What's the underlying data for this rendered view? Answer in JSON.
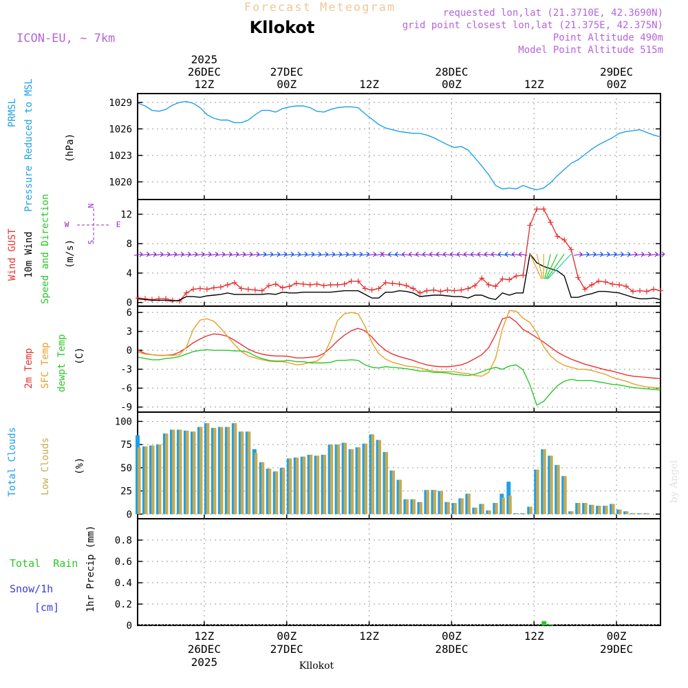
{
  "header": {
    "forecast_title": "Forecast Meteogram",
    "location": "Kllokot",
    "model": "ICON-EU, ~ 7km",
    "requested": "requested lon,lat (21.3710E, 42.3690N)",
    "grid_point": "grid point closest lon,lat (21.375E, 42.375N)",
    "point_alt": "Point Altitude 490m",
    "model_alt": "Model Point Altitude 515m",
    "footer_location": "Kllokot",
    "watermark": "by Angel"
  },
  "time_axis": {
    "top_labels": [
      {
        "hour": 12,
        "lines": [
          "2025",
          "26DEC",
          "12Z"
        ]
      },
      {
        "hour": 24,
        "lines": [
          "27DEC",
          "00Z"
        ]
      },
      {
        "hour": 36,
        "lines": [
          "12Z"
        ]
      },
      {
        "hour": 48,
        "lines": [
          "28DEC",
          "00Z"
        ]
      },
      {
        "hour": 60,
        "lines": [
          "12Z"
        ]
      },
      {
        "hour": 72,
        "lines": [
          "29DEC",
          "00Z"
        ]
      }
    ],
    "bottom_labels": [
      {
        "hour": 12,
        "lines": [
          "12Z",
          "26DEC",
          "2025"
        ]
      },
      {
        "hour": 24,
        "lines": [
          "00Z",
          "27DEC"
        ]
      },
      {
        "hour": 36,
        "lines": [
          "12Z"
        ]
      },
      {
        "hour": 48,
        "lines": [
          "00Z",
          "28DEC"
        ]
      },
      {
        "hour": 60,
        "lines": [
          "12Z"
        ]
      },
      {
        "hour": 72,
        "lines": [
          "00Z",
          "29DEC"
        ]
      }
    ]
  },
  "panel_labels": {
    "pressure": {
      "name": "PRMSL",
      "desc": "Pressure Reduced to MSL",
      "unit": "(hPa)"
    },
    "wind": {
      "gust": "Wind GUST",
      "wind10": "10m Wind",
      "dir": "Speed and Direction",
      "unit": "(m/s)",
      "compass_n": "N",
      "compass_s": "S",
      "compass_w": "W",
      "compass_e": "E"
    },
    "temp": {
      "t2m": "2m Temp",
      "sfc": "SFC Temp",
      "dewpt": "dewpt Temp",
      "unit": "(C)"
    },
    "clouds": {
      "total": "Total Clouds",
      "low": "Low Clouds",
      "unit": "(%)"
    },
    "precip": {
      "rain": "Total  Rain",
      "snow": "Snow/1h",
      "snow_unit": "[cm]",
      "unit": "1hr Precip (mm)"
    }
  },
  "colors": {
    "pressure": "#1ea0e6",
    "gust": "#e63232",
    "wind": "#000000",
    "wind_arrow": "#8c28c8",
    "wind_arrow_alt": "#1e50e6",
    "t2m": "#e63232",
    "sfc": "#e6a028",
    "dewpt": "#28c828",
    "total_cloud": "#1ea0e6",
    "low_cloud": "#c8aa50",
    "rain": "#28c828",
    "snow": "#3c3cdc",
    "label_model": "#b464dc",
    "label_forecast": "#f0c896"
  },
  "chart_data": [
    {
      "type": "line",
      "name": "pressure",
      "ylabel": "(hPa)",
      "ylim": [
        1018,
        1030
      ],
      "yticks": [
        1020,
        1023,
        1026,
        1029
      ],
      "x_start_hour": 0,
      "x_end_hour": 76,
      "series": [
        {
          "name": "PRMSL",
          "values": [
            1028.9,
            1028.6,
            1028.1,
            1028.0,
            1028.2,
            1028.7,
            1029.0,
            1029.1,
            1028.9,
            1028.4,
            1027.6,
            1027.2,
            1027.0,
            1027.0,
            1026.7,
            1026.7,
            1027.0,
            1027.6,
            1028.1,
            1028.1,
            1027.9,
            1028.3,
            1028.5,
            1028.6,
            1028.6,
            1028.4,
            1028.0,
            1027.9,
            1028.2,
            1028.4,
            1028.5,
            1028.5,
            1028.4,
            1027.7,
            1027.1,
            1026.5,
            1026.1,
            1025.9,
            1025.7,
            1025.6,
            1025.5,
            1025.5,
            1025.3,
            1025.0,
            1024.6,
            1024.2,
            1023.9,
            1024.0,
            1023.6,
            1022.7,
            1021.8,
            1020.8,
            1019.6,
            1019.2,
            1019.3,
            1019.2,
            1019.6,
            1019.3,
            1019.1,
            1019.3,
            1019.9,
            1020.7,
            1021.4,
            1022.1,
            1022.5,
            1023.1,
            1023.7,
            1024.2,
            1024.6,
            1025.0,
            1025.5,
            1025.7,
            1025.8,
            1025.9,
            1025.6,
            1025.3,
            1025.1
          ]
        }
      ]
    },
    {
      "type": "line",
      "name": "wind",
      "ylabel": "(m/s)",
      "ylim": [
        -0.5,
        14
      ],
      "yticks": [
        0,
        4,
        8,
        12
      ],
      "x_start_hour": 0,
      "x_end_hour": 76,
      "series": [
        {
          "name": "Wind GUST",
          "values": [
            0.6,
            0.5,
            0.4,
            0.5,
            0.5,
            0.3,
            0.2,
            1.3,
            1.8,
            1.9,
            1.8,
            2.0,
            2.1,
            2.4,
            2.7,
            1.9,
            1.8,
            1.7,
            1.6,
            2.3,
            2.5,
            2.0,
            2.2,
            2.6,
            2.5,
            2.4,
            2.5,
            2.3,
            2.4,
            2.4,
            2.5,
            2.9,
            2.9,
            1.9,
            1.7,
            1.9,
            2.7,
            2.6,
            2.5,
            2.3,
            1.9,
            1.3,
            1.6,
            1.7,
            1.5,
            1.7,
            1.6,
            1.7,
            1.9,
            2.3,
            3.3,
            2.4,
            2.2,
            3.2,
            3.1,
            3.6,
            3.7,
            10.5,
            12.7,
            12.7,
            10.9,
            9.0,
            8.5,
            7.2,
            3.4,
            1.8,
            2.4,
            2.9,
            2.8,
            2.5,
            2.4,
            2.2,
            1.5,
            1.6,
            1.5,
            1.8,
            1.6
          ]
        },
        {
          "name": "10m Wind",
          "values": [
            0.5,
            0.4,
            0.3,
            0.3,
            0.3,
            0.2,
            0.3,
            0.8,
            0.8,
            0.7,
            0.9,
            1.0,
            1.1,
            1.3,
            1.1,
            1.1,
            1.1,
            1.1,
            1.1,
            1.2,
            1.1,
            1.4,
            1.3,
            1.3,
            1.4,
            1.4,
            1.4,
            1.4,
            1.4,
            1.5,
            1.6,
            1.6,
            1.6,
            1.1,
            0.6,
            0.6,
            1.4,
            1.4,
            1.6,
            1.5,
            1.3,
            0.8,
            0.9,
            1.0,
            1.0,
            0.9,
            0.8,
            0.8,
            0.6,
            1.0,
            1.0,
            0.6,
            0.4,
            1.3,
            1.0,
            1.3,
            1.3,
            6.6,
            5.4,
            4.9,
            4.6,
            4.3,
            3.6,
            0.7,
            0.7,
            1.0,
            1.2,
            1.5,
            1.5,
            1.4,
            1.3,
            1.0,
            0.7,
            0.5,
            0.5,
            0.6,
            0.4
          ]
        }
      ],
      "arrows_y": 6.5
    },
    {
      "type": "line",
      "name": "temperature",
      "ylabel": "(C)",
      "ylim": [
        -9.8,
        7
      ],
      "yticks": [
        -9,
        -6,
        -3,
        0,
        3,
        6
      ],
      "x_start_hour": 0,
      "x_end_hour": 76,
      "series": [
        {
          "name": "2m Temp",
          "values": [
            0.0,
            -0.5,
            -0.7,
            -0.8,
            -0.8,
            -0.7,
            -0.3,
            0.4,
            1.2,
            1.8,
            2.3,
            2.6,
            2.5,
            2.2,
            1.6,
            0.9,
            0.2,
            -0.3,
            -0.6,
            -0.8,
            -0.9,
            -0.9,
            -1.0,
            -1.2,
            -1.2,
            -1.1,
            -1.0,
            -0.5,
            0.4,
            1.5,
            2.4,
            3.1,
            3.5,
            3.1,
            2.1,
            0.9,
            0.0,
            -0.6,
            -1.0,
            -1.3,
            -1.6,
            -2.0,
            -2.3,
            -2.5,
            -2.6,
            -2.6,
            -2.5,
            -2.3,
            -1.9,
            -1.3,
            -0.7,
            0.4,
            2.5,
            5.0,
            5.3,
            4.5,
            3.3,
            2.7,
            2.0,
            1.3,
            0.5,
            -0.3,
            -0.9,
            -1.4,
            -1.8,
            -2.2,
            -2.5,
            -2.8,
            -3.1,
            -3.3,
            -3.6,
            -3.9,
            -4.1,
            -4.2,
            -4.3,
            -4.4,
            -4.5
          ]
        },
        {
          "name": "SFC Temp",
          "values": [
            -0.3,
            -0.6,
            -0.7,
            -0.8,
            -0.8,
            -0.8,
            -0.7,
            0.5,
            3.3,
            4.8,
            5.0,
            4.6,
            3.5,
            2.2,
            0.9,
            -0.2,
            -0.9,
            -1.2,
            -1.5,
            -1.7,
            -1.8,
            -1.8,
            -2.0,
            -2.3,
            -2.2,
            -1.9,
            -1.7,
            -0.8,
            1.6,
            4.7,
            5.8,
            6.0,
            5.8,
            3.8,
            1.2,
            -0.5,
            -1.4,
            -1.9,
            -2.2,
            -2.5,
            -2.6,
            -2.8,
            -3.1,
            -3.3,
            -3.4,
            -3.4,
            -3.4,
            -3.6,
            -3.7,
            -4.0,
            -4.1,
            -3.5,
            -1.3,
            3.4,
            6.3,
            6.2,
            5.1,
            4.4,
            2.8,
            0.6,
            -0.9,
            -1.8,
            -2.4,
            -2.7,
            -3.0,
            -3.0,
            -3.2,
            -3.5,
            -3.8,
            -4.3,
            -4.6,
            -4.9,
            -5.3,
            -5.6,
            -5.8,
            -5.9,
            -6.0
          ]
        },
        {
          "name": "dewpt Temp",
          "values": [
            -1.1,
            -1.3,
            -1.5,
            -1.5,
            -1.3,
            -1.2,
            -1.0,
            -0.6,
            -0.2,
            0.0,
            0.1,
            0.0,
            0.0,
            0.0,
            -0.1,
            -0.1,
            -0.3,
            -0.9,
            -1.3,
            -1.6,
            -1.7,
            -1.7,
            -1.6,
            -1.8,
            -1.8,
            -2.0,
            -2.0,
            -2.0,
            -1.9,
            -1.6,
            -1.6,
            -1.5,
            -1.6,
            -2.3,
            -2.7,
            -2.8,
            -2.6,
            -2.7,
            -2.8,
            -2.9,
            -3.1,
            -3.3,
            -3.3,
            -3.5,
            -3.5,
            -3.6,
            -3.8,
            -3.9,
            -4.0,
            -3.8,
            -3.4,
            -3.0,
            -2.7,
            -3.0,
            -2.5,
            -2.3,
            -3.1,
            -5.5,
            -8.7,
            -8.1,
            -6.8,
            -5.6,
            -4.9,
            -4.6,
            -4.8,
            -4.8,
            -4.8,
            -5.0,
            -5.2,
            -5.4,
            -5.5,
            -5.7,
            -5.9,
            -6.0,
            -6.1,
            -6.2,
            -6.3
          ]
        }
      ]
    },
    {
      "type": "bar",
      "name": "clouds",
      "ylabel": "(%)",
      "ylim": [
        -5,
        110
      ],
      "yticks": [
        0,
        25,
        50,
        75,
        100
      ],
      "x_start_hour": 0,
      "x_end_hour": 76,
      "series": [
        {
          "name": "Total Clouds",
          "values": [
            85,
            73,
            74,
            75,
            87,
            91,
            91,
            90,
            89,
            94,
            98,
            93,
            94,
            94,
            98,
            89,
            89,
            70,
            56,
            49,
            46,
            50,
            60,
            61,
            62,
            64,
            63,
            64,
            75,
            75,
            77,
            70,
            72,
            76,
            86,
            80,
            67,
            47,
            37,
            16,
            16,
            13,
            26,
            26,
            25,
            13,
            12,
            17,
            22,
            7,
            11,
            4,
            12,
            22,
            35,
            1,
            1,
            8,
            48,
            70,
            63,
            53,
            41,
            3,
            12,
            12,
            10,
            9,
            9,
            11,
            5,
            3,
            1,
            1,
            1,
            0,
            0
          ]
        },
        {
          "name": "Low Clouds",
          "values": [
            72,
            73,
            74,
            75,
            87,
            91,
            91,
            90,
            89,
            94,
            98,
            93,
            94,
            94,
            98,
            89,
            89,
            66,
            56,
            49,
            46,
            50,
            60,
            61,
            62,
            64,
            63,
            64,
            75,
            75,
            77,
            70,
            72,
            76,
            86,
            80,
            67,
            47,
            37,
            16,
            16,
            13,
            26,
            26,
            25,
            13,
            12,
            17,
            22,
            7,
            11,
            4,
            12,
            18,
            20,
            1,
            1,
            8,
            48,
            70,
            63,
            53,
            41,
            3,
            12,
            12,
            10,
            9,
            9,
            11,
            5,
            3,
            1,
            1,
            1,
            0,
            0
          ]
        }
      ]
    },
    {
      "type": "bar",
      "name": "precipitation",
      "ylabel": "1hr Precip (mm)",
      "ylim": [
        0,
        1.0
      ],
      "yticks": [
        0,
        0.2,
        0.4,
        0.6,
        0.8
      ],
      "x_start_hour": 0,
      "x_end_hour": 76,
      "series": [
        {
          "name": "Total Rain",
          "values": [
            0,
            0,
            0,
            0,
            0,
            0,
            0,
            0,
            0,
            0,
            0,
            0,
            0,
            0,
            0,
            0,
            0,
            0,
            0,
            0,
            0,
            0,
            0,
            0,
            0,
            0,
            0,
            0,
            0,
            0,
            0,
            0,
            0,
            0,
            0,
            0,
            0,
            0,
            0,
            0,
            0,
            0,
            0,
            0,
            0,
            0,
            0,
            0,
            0,
            0,
            0,
            0,
            0,
            0,
            0,
            0,
            0,
            0,
            0,
            0.04,
            0.01,
            0,
            0,
            0,
            0,
            0,
            0,
            0,
            0,
            0,
            0,
            0,
            0,
            0,
            0,
            0,
            0
          ]
        },
        {
          "name": "Snow/1h",
          "values": [
            0,
            0,
            0,
            0,
            0,
            0,
            0,
            0,
            0,
            0,
            0,
            0,
            0,
            0,
            0,
            0,
            0,
            0,
            0,
            0,
            0,
            0,
            0,
            0,
            0,
            0,
            0,
            0,
            0,
            0,
            0,
            0,
            0,
            0,
            0,
            0,
            0,
            0,
            0,
            0,
            0,
            0,
            0,
            0,
            0,
            0,
            0,
            0,
            0,
            0,
            0,
            0,
            0,
            0,
            0,
            0,
            0,
            0,
            0,
            0,
            0,
            0,
            0,
            0,
            0,
            0,
            0,
            0,
            0,
            0,
            0,
            0,
            0,
            0,
            0,
            0,
            0
          ]
        }
      ]
    }
  ]
}
